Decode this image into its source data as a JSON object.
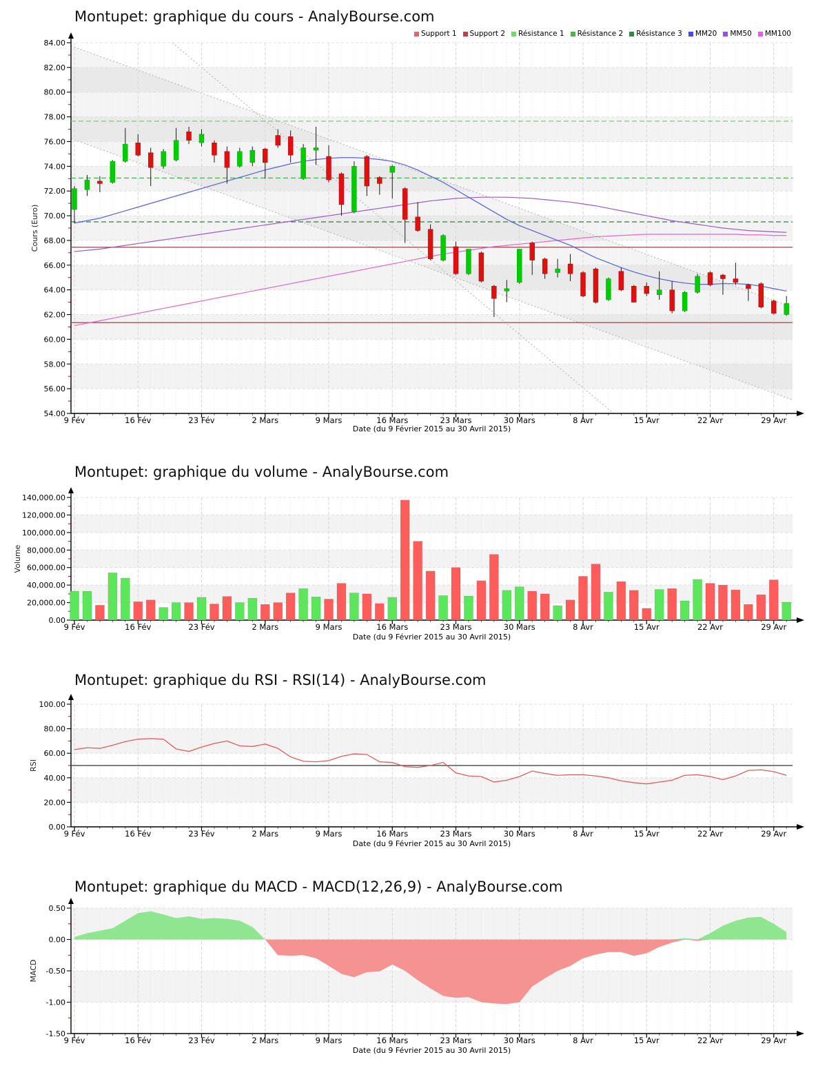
{
  "x_axis": {
    "tick_labels": [
      "9 Fév",
      "16 Fév",
      "23 Fév",
      "2 Mars",
      "9 Mars",
      "16 Mars",
      "23 Mars",
      "30 Mars",
      "8 Avr",
      "15 Avr",
      "22 Avr",
      "29 Avr"
    ],
    "caption": "Date (du 9 Février 2015 au 30 Avril 2015)"
  },
  "legend": {
    "items": [
      {
        "label": "Support 1",
        "color": "#cc7070"
      },
      {
        "label": "Support 2",
        "color": "#aa4a4a"
      },
      {
        "label": "Résistance 1",
        "color": "#6fd96f"
      },
      {
        "label": "Résistance 2",
        "color": "#4db34d"
      },
      {
        "label": "Résistance 3",
        "color": "#2e8b46"
      },
      {
        "label": "MM20",
        "color": "#4b4be0"
      },
      {
        "label": "MM50",
        "color": "#9b50d8"
      },
      {
        "label": "MM100",
        "color": "#e35ce3"
      }
    ]
  },
  "charts": {
    "cours": {
      "title": "Montupet: graphique du cours - AnalyBourse.com",
      "y_axis_label": "Cours (Euro)",
      "y_tick_labels": [
        "84.00",
        "82.00",
        "80.00",
        "78.00",
        "76.00",
        "74.00",
        "72.00",
        "70.00",
        "68.00",
        "66.00",
        "64.00",
        "62.00",
        "60.00",
        "58.00",
        "56.00",
        "54.00"
      ]
    },
    "volume": {
      "title": "Montupet: graphique du volume - AnalyBourse.com",
      "y_axis_label": "Volume",
      "y_tick_labels": [
        "140,000.00",
        "120,000.00",
        "100,000.00",
        "80,000.00",
        "60,000.00",
        "40,000.00",
        "20,000.00",
        "0.00"
      ]
    },
    "rsi": {
      "title": "Montupet: graphique du RSI - RSI(14) - AnalyBourse.com",
      "y_axis_label": "RSI",
      "y_tick_labels": [
        "100.00",
        "80.00",
        "60.00",
        "40.00",
        "20.00",
        "0.00"
      ]
    },
    "macd": {
      "title": "Montupet: graphique du MACD - MACD(12,26,9) - AnalyBourse.com",
      "y_axis_label": "MACD",
      "y_tick_labels": [
        "0.50",
        "0.00",
        "-0.50",
        "-1.00",
        "-1.50"
      ]
    }
  },
  "chart_data": [
    {
      "type": "candlestick",
      "title": "Montupet: graphique du cours - AnalyBourse.com",
      "ylabel": "Cours (Euro)",
      "ylim": [
        54,
        84
      ],
      "dates": [
        "2015-02-09",
        "2015-02-10",
        "2015-02-11",
        "2015-02-12",
        "2015-02-13",
        "2015-02-16",
        "2015-02-17",
        "2015-02-18",
        "2015-02-19",
        "2015-02-20",
        "2015-02-23",
        "2015-02-24",
        "2015-02-25",
        "2015-02-26",
        "2015-02-27",
        "2015-03-02",
        "2015-03-03",
        "2015-03-04",
        "2015-03-05",
        "2015-03-06",
        "2015-03-09",
        "2015-03-10",
        "2015-03-11",
        "2015-03-12",
        "2015-03-13",
        "2015-03-16",
        "2015-03-17",
        "2015-03-18",
        "2015-03-19",
        "2015-03-20",
        "2015-03-23",
        "2015-03-24",
        "2015-03-25",
        "2015-03-26",
        "2015-03-27",
        "2015-03-30",
        "2015-03-31",
        "2015-04-01",
        "2015-04-02",
        "2015-04-07",
        "2015-04-08",
        "2015-04-09",
        "2015-04-10",
        "2015-04-13",
        "2015-04-14",
        "2015-04-15",
        "2015-04-16",
        "2015-04-17",
        "2015-04-20",
        "2015-04-21",
        "2015-04-22",
        "2015-04-23",
        "2015-04-24",
        "2015-04-27",
        "2015-04-28",
        "2015-04-29",
        "2015-04-30"
      ],
      "open": [
        70.5,
        72.1,
        72.8,
        72.7,
        74.4,
        75.9,
        75.1,
        74.0,
        74.5,
        76.8,
        75.9,
        75.9,
        75.2,
        74.0,
        74.3,
        75.4,
        76.5,
        76.4,
        73.0,
        75.3,
        74.8,
        73.4,
        70.3,
        74.8,
        73.1,
        73.5,
        72.2,
        69.9,
        68.9,
        66.4,
        67.5,
        65.3,
        67.0,
        64.3,
        63.9,
        64.6,
        67.8,
        66.5,
        65.4,
        66.1,
        65.4,
        65.7,
        63.2,
        65.5,
        64.3,
        64.3,
        63.6,
        64.0,
        62.3,
        63.8,
        65.4,
        65.2,
        64.9,
        64.4,
        64.5,
        63.1,
        62.0
      ],
      "high": [
        72.4,
        73.3,
        73.2,
        74.5,
        77.1,
        76.6,
        75.5,
        75.4,
        77.1,
        77.2,
        77.0,
        76.1,
        75.6,
        75.5,
        75.6,
        75.5,
        77.0,
        76.9,
        75.8,
        77.2,
        75.7,
        73.5,
        74.4,
        74.9,
        73.2,
        74.1,
        72.3,
        71.1,
        69.3,
        68.5,
        67.9,
        67.3,
        67.1,
        64.4,
        64.8,
        67.3,
        67.9,
        66.6,
        66.5,
        66.9,
        65.5,
        65.8,
        65.0,
        65.8,
        64.4,
        64.6,
        65.5,
        64.7,
        63.9,
        65.3,
        65.5,
        65.3,
        66.2,
        64.5,
        64.6,
        63.2,
        63.5
      ],
      "low": [
        69.4,
        71.6,
        71.9,
        72.6,
        74.3,
        74.8,
        72.4,
        73.8,
        74.4,
        75.8,
        75.6,
        74.3,
        72.6,
        73.9,
        74.0,
        73.0,
        75.5,
        74.3,
        72.9,
        74.1,
        72.7,
        70.0,
        70.2,
        71.6,
        71.7,
        71.4,
        67.8,
        68.7,
        66.4,
        66.3,
        65.2,
        65.2,
        64.6,
        61.8,
        63.0,
        64.5,
        65.2,
        64.9,
        65.0,
        64.7,
        63.4,
        62.9,
        63.1,
        63.9,
        63.0,
        63.5,
        63.2,
        62.1,
        62.2,
        63.7,
        64.3,
        63.6,
        64.4,
        63.1,
        62.5,
        62.0,
        61.9
      ],
      "close": [
        72.2,
        72.9,
        72.6,
        74.4,
        75.8,
        74.9,
        73.9,
        75.2,
        76.1,
        76.1,
        76.6,
        74.9,
        73.9,
        75.2,
        75.3,
        74.3,
        75.7,
        74.9,
        75.5,
        75.5,
        72.9,
        70.9,
        74.0,
        72.4,
        72.6,
        74.0,
        69.7,
        68.8,
        66.5,
        68.4,
        65.3,
        67.3,
        64.7,
        63.3,
        64.1,
        67.3,
        66.4,
        65.3,
        65.7,
        65.3,
        63.5,
        63.0,
        64.9,
        64.0,
        63.0,
        63.7,
        64.0,
        62.3,
        63.8,
        65.1,
        64.4,
        64.9,
        64.6,
        64.1,
        62.6,
        62.1,
        62.9
      ],
      "colors": {
        "up": "#00cc00",
        "down": "#e01010",
        "wick": "#1a1a1a"
      },
      "overlays": {
        "mm20_color": "#5560dd",
        "mm20": [
          69.4,
          69.6,
          69.8,
          70.1,
          70.4,
          70.7,
          71.0,
          71.3,
          71.6,
          71.9,
          72.2,
          72.5,
          72.8,
          73.1,
          73.4,
          73.7,
          73.95,
          74.2,
          74.4,
          74.55,
          74.65,
          74.7,
          74.7,
          74.65,
          74.55,
          74.4,
          74.1,
          73.7,
          73.2,
          72.7,
          72.1,
          71.5,
          70.9,
          70.3,
          69.7,
          69.2,
          68.8,
          68.4,
          68.0,
          67.6,
          67.1,
          66.6,
          66.2,
          65.8,
          65.45,
          65.15,
          64.9,
          64.7,
          64.55,
          64.45,
          64.45,
          64.5,
          64.5,
          64.45,
          64.3,
          64.1,
          63.9
        ],
        "mm50_color": "#9b59d0",
        "mm50": [
          67.1,
          67.2,
          67.3,
          67.45,
          67.6,
          67.75,
          67.9,
          68.05,
          68.2,
          68.35,
          68.5,
          68.65,
          68.8,
          68.95,
          69.1,
          69.25,
          69.4,
          69.55,
          69.7,
          69.85,
          70.0,
          70.15,
          70.3,
          70.45,
          70.6,
          70.75,
          70.9,
          71.05,
          71.2,
          71.3,
          71.4,
          71.45,
          71.5,
          71.5,
          71.5,
          71.45,
          71.4,
          71.3,
          71.2,
          71.1,
          70.95,
          70.8,
          70.6,
          70.4,
          70.2,
          70.0,
          69.8,
          69.6,
          69.45,
          69.3,
          69.15,
          69.0,
          68.9,
          68.8,
          68.75,
          68.7,
          68.65
        ],
        "mm100_color": "#e366cc",
        "mm100": [
          61.1,
          61.3,
          61.5,
          61.7,
          61.9,
          62.1,
          62.3,
          62.5,
          62.7,
          62.9,
          63.1,
          63.3,
          63.5,
          63.7,
          63.9,
          64.1,
          64.3,
          64.5,
          64.7,
          64.9,
          65.1,
          65.3,
          65.5,
          65.7,
          65.9,
          66.1,
          66.3,
          66.5,
          66.7,
          66.9,
          67.05,
          67.2,
          67.35,
          67.5,
          67.6,
          67.7,
          67.8,
          67.9,
          68.0,
          68.1,
          68.2,
          68.3,
          68.35,
          68.4,
          68.45,
          68.5,
          68.5,
          68.5,
          68.5,
          68.5,
          68.5,
          68.5,
          68.5,
          68.45,
          68.45,
          68.4,
          68.4
        ]
      },
      "levels": {
        "support": [
          {
            "value": 67.45,
            "color": "#a65252"
          },
          {
            "value": 61.35,
            "color": "#a65252"
          }
        ],
        "resistance": [
          {
            "value": 77.65,
            "color": "#77cc77"
          },
          {
            "value": 73.05,
            "color": "#4daf4d"
          },
          {
            "value": 69.5,
            "color": "#2e7d46"
          }
        ]
      },
      "channel": {
        "upper": [
          83.75,
          62.6
        ],
        "lower": [
          76.25,
          55.1
        ],
        "steep": {
          "start_day": 7.7,
          "start_price": 84,
          "end_day": 42.4,
          "end_price": 54
        },
        "line_color": "#b8b8b8",
        "fill": "rgba(120,120,120,0.08)"
      }
    },
    {
      "type": "bar",
      "title": "Montupet: graphique du volume - AnalyBourse.com",
      "ylabel": "Volume",
      "ylim": [
        0,
        140000
      ],
      "values": [
        33000,
        33000,
        17000,
        54000,
        48000,
        21000,
        23000,
        14500,
        20000,
        20000,
        26000,
        18500,
        27000,
        20000,
        25000,
        18000,
        20000,
        31000,
        36000,
        26500,
        24000,
        42000,
        31000,
        30000,
        19000,
        26000,
        137000,
        90000,
        56000,
        28000,
        60000,
        27500,
        45000,
        75000,
        34000,
        38000,
        33000,
        30000,
        16500,
        23000,
        50000,
        64000,
        32000,
        44000,
        34000,
        13500,
        35000,
        36000,
        22000,
        46500,
        42000,
        40000,
        34500,
        18000,
        29000,
        46000,
        20500
      ],
      "colors": {
        "up": "#5ce65c",
        "down": "#ff5c5c"
      }
    },
    {
      "type": "line",
      "title": "Montupet: graphique du RSI - RSI(14) - AnalyBourse.com",
      "ylabel": "RSI",
      "ylim": [
        0,
        100
      ],
      "reference_line": 50,
      "values": [
        63,
        64.5,
        64,
        66.5,
        69.5,
        71.5,
        72,
        71.5,
        63.5,
        61.5,
        65,
        68,
        70,
        66,
        65.5,
        67.5,
        64,
        57,
        53.5,
        53,
        54,
        57.5,
        59.5,
        59,
        53,
        52.5,
        49,
        48.5,
        50,
        52.5,
        44,
        41.5,
        41,
        36.5,
        38,
        41,
        45.5,
        43.5,
        42,
        42.5,
        42.5,
        41.5,
        40,
        37.5,
        36,
        35,
        36.5,
        38,
        42,
        42.5,
        41,
        38.5,
        41.5,
        46,
        46.5,
        45,
        42
      ],
      "color": "#e05c5c",
      "reference_color": "#555555"
    },
    {
      "type": "area",
      "title": "Montupet: graphique du MACD - MACD(12,26,9) - AnalyBourse.com",
      "ylabel": "MACD",
      "ylim": [
        -1.5,
        0.5
      ],
      "values": [
        0.04,
        0.1,
        0.14,
        0.18,
        0.3,
        0.42,
        0.45,
        0.4,
        0.34,
        0.37,
        0.33,
        0.34,
        0.33,
        0.3,
        0.2,
        0.0,
        -0.25,
        -0.26,
        -0.25,
        -0.3,
        -0.42,
        -0.55,
        -0.6,
        -0.52,
        -0.51,
        -0.4,
        -0.5,
        -0.65,
        -0.78,
        -0.9,
        -0.93,
        -0.92,
        -1.0,
        -1.02,
        -1.03,
        -1.0,
        -0.75,
        -0.62,
        -0.5,
        -0.42,
        -0.3,
        -0.24,
        -0.2,
        -0.2,
        -0.26,
        -0.22,
        -0.12,
        -0.05,
        0.02,
        -0.02,
        0.1,
        0.22,
        0.3,
        0.35,
        0.36,
        0.25,
        0.12
      ],
      "positive_color": "#90e690",
      "negative_color": "#f59393"
    }
  ]
}
